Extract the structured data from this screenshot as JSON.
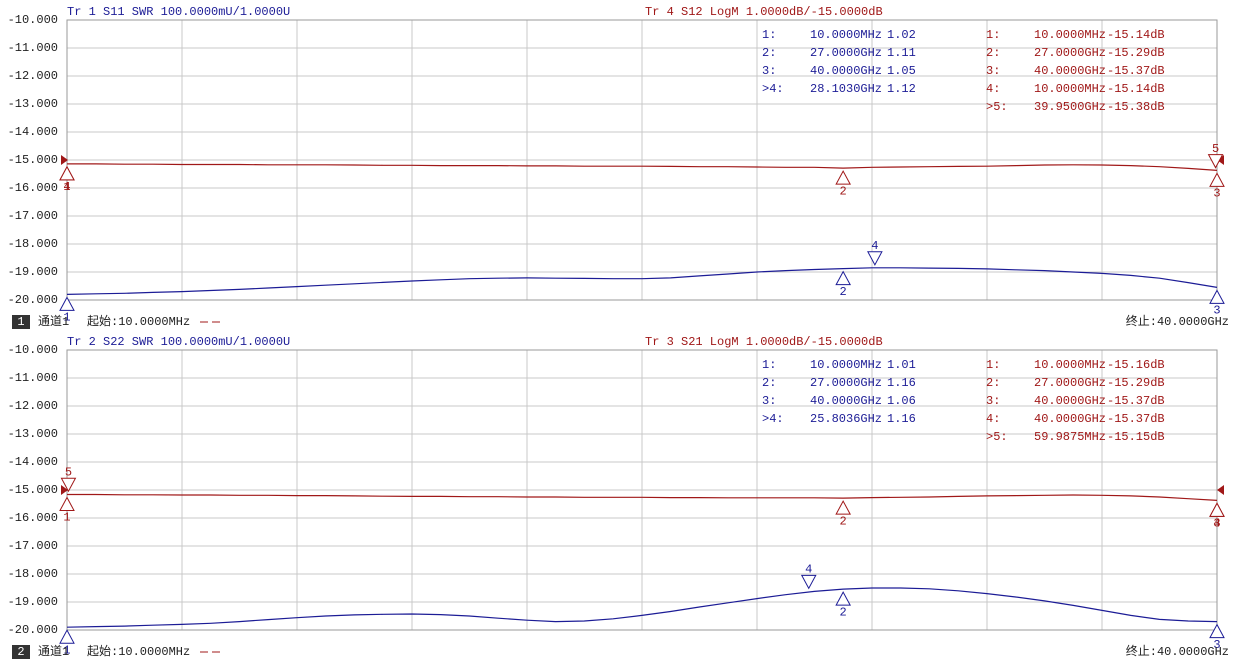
{
  "chart_data": [
    {
      "type": "line",
      "x": [
        0.01,
        1,
        2,
        3,
        4,
        5,
        6,
        7,
        8,
        9,
        10,
        11,
        12,
        13,
        14,
        15,
        16,
        17,
        18,
        19,
        20,
        21,
        22,
        23,
        24,
        25,
        26,
        27,
        28,
        29,
        30,
        31,
        32,
        33,
        34,
        35,
        36,
        37,
        38,
        39,
        40
      ],
      "xlim": [
        0.01,
        40
      ],
      "ylim": [
        -20,
        -10
      ],
      "yticks": [
        {
          "value": -10,
          "label": "-10.000"
        },
        {
          "value": -11,
          "label": "-11.000"
        },
        {
          "value": -12,
          "label": "-12.000"
        },
        {
          "value": -13,
          "label": "-13.000"
        },
        {
          "value": -14,
          "label": "-14.000"
        },
        {
          "value": -15,
          "label": "-15.000"
        },
        {
          "value": -16,
          "label": "-16.000"
        },
        {
          "value": -17,
          "label": "-17.000"
        },
        {
          "value": -18,
          "label": "-18.000"
        },
        {
          "value": -19,
          "label": "-19.000"
        },
        {
          "value": -20,
          "label": "-20.000"
        }
      ],
      "grid": true,
      "series": [
        {
          "name": "Tr 1  S11 SWR 100.0000mU/1.0000U",
          "color": "#1c1c96",
          "values": [
            -19.8,
            -19.78,
            -19.76,
            -19.73,
            -19.7,
            -19.66,
            -19.62,
            -19.57,
            -19.52,
            -19.47,
            -19.42,
            -19.37,
            -19.32,
            -19.28,
            -19.24,
            -19.22,
            -19.21,
            -19.22,
            -19.23,
            -19.24,
            -19.24,
            -19.21,
            -19.14,
            -19.07,
            -19.0,
            -18.95,
            -18.91,
            -18.88,
            -18.85,
            -18.85,
            -18.86,
            -18.87,
            -18.89,
            -18.92,
            -18.95,
            -19.0,
            -19.05,
            -19.12,
            -19.22,
            -19.38,
            -19.55
          ],
          "markers": [
            {
              "label": "1",
              "x": 0.01,
              "y": -19.8
            },
            {
              "label": "2",
              "x": 27,
              "y": -18.88
            },
            {
              "label": "3",
              "x": 40,
              "y": -19.55
            },
            {
              "label": "4",
              "x": 28.103,
              "y": -18.85,
              "active": true
            }
          ],
          "table": [
            [
              "1:",
              "10.0000MHz",
              "1.02"
            ],
            [
              "2:",
              "27.0000GHz",
              "1.11"
            ],
            [
              "3:",
              "40.0000GHz",
              "1.05"
            ],
            [
              ">4:",
              "28.1030GHz",
              "1.12"
            ]
          ]
        },
        {
          "name": "Tr 4  S12 LogM 1.0000dB/-15.0000dB",
          "color": "#a01818",
          "reference": -15,
          "values": [
            -15.14,
            -15.14,
            -15.15,
            -15.15,
            -15.16,
            -15.16,
            -15.16,
            -15.17,
            -15.17,
            -15.17,
            -15.18,
            -15.19,
            -15.19,
            -15.2,
            -15.2,
            -15.2,
            -15.21,
            -15.21,
            -15.22,
            -15.22,
            -15.22,
            -15.23,
            -15.24,
            -15.24,
            -15.25,
            -15.26,
            -15.26,
            -15.29,
            -15.26,
            -15.25,
            -15.24,
            -15.23,
            -15.22,
            -15.2,
            -15.18,
            -15.17,
            -15.18,
            -15.2,
            -15.24,
            -15.3,
            -15.37
          ],
          "markers": [
            {
              "label": "1",
              "x": 0.01,
              "y": -15.14
            },
            {
              "label": "2",
              "x": 27,
              "y": -15.29
            },
            {
              "label": "3",
              "x": 40,
              "y": -15.37
            },
            {
              "label": "4",
              "x": 0.01,
              "y": -15.14
            },
            {
              "label": "5",
              "x": 39.95,
              "y": -15.38,
              "active": true
            }
          ],
          "table": [
            [
              "1:",
              "10.0000MHz",
              "-15.14dB"
            ],
            [
              "2:",
              "27.0000GHz",
              "-15.29dB"
            ],
            [
              "3:",
              "40.0000GHz",
              "-15.37dB"
            ],
            [
              "4:",
              "10.0000MHz",
              "-15.14dB"
            ],
            [
              ">5:",
              "39.9500GHz",
              "-15.38dB"
            ]
          ]
        }
      ],
      "channel_box": "1",
      "channel": "通道1",
      "start": "起始:10.0000MHz",
      "stop": "终止:40.0000GHz"
    },
    {
      "type": "line",
      "x": [
        0.01,
        1,
        2,
        3,
        4,
        5,
        6,
        7,
        8,
        9,
        10,
        11,
        12,
        13,
        14,
        15,
        16,
        17,
        18,
        19,
        20,
        21,
        22,
        23,
        24,
        25,
        26,
        27,
        28,
        29,
        30,
        31,
        32,
        33,
        34,
        35,
        36,
        37,
        38,
        39,
        40
      ],
      "xlim": [
        0.01,
        40
      ],
      "ylim": [
        -20,
        -10
      ],
      "yticks": [
        {
          "value": -10,
          "label": "-10.000"
        },
        {
          "value": -11,
          "label": "-11.000"
        },
        {
          "value": -12,
          "label": "-12.000"
        },
        {
          "value": -13,
          "label": "-13.000"
        },
        {
          "value": -14,
          "label": "-14.000"
        },
        {
          "value": -15,
          "label": "-15.000"
        },
        {
          "value": -16,
          "label": "-16.000"
        },
        {
          "value": -17,
          "label": "-17.000"
        },
        {
          "value": -18,
          "label": "-18.000"
        },
        {
          "value": -19,
          "label": "-19.000"
        },
        {
          "value": -20,
          "label": "-20.000"
        }
      ],
      "grid": true,
      "series": [
        {
          "name": "Tr 2  S22 SWR 100.0000mU/1.0000U",
          "color": "#1c1c96",
          "values": [
            -19.9,
            -19.88,
            -19.86,
            -19.83,
            -19.8,
            -19.76,
            -19.7,
            -19.63,
            -19.56,
            -19.5,
            -19.46,
            -19.44,
            -19.43,
            -19.45,
            -19.5,
            -19.58,
            -19.65,
            -19.7,
            -19.68,
            -19.6,
            -19.48,
            -19.34,
            -19.18,
            -19.03,
            -18.88,
            -18.74,
            -18.62,
            -18.54,
            -18.5,
            -18.5,
            -18.53,
            -18.6,
            -18.7,
            -18.82,
            -18.96,
            -19.12,
            -19.3,
            -19.48,
            -19.62,
            -19.68,
            -19.7
          ],
          "markers": [
            {
              "label": "1",
              "x": 0.01,
              "y": -19.9
            },
            {
              "label": "2",
              "x": 27,
              "y": -18.54
            },
            {
              "label": "3",
              "x": 40,
              "y": -19.7
            },
            {
              "label": "4",
              "x": 25.8036,
              "y": -18.62,
              "active": true
            }
          ],
          "table": [
            [
              "1:",
              "10.0000MHz",
              "1.01"
            ],
            [
              "2:",
              "27.0000GHz",
              "1.16"
            ],
            [
              "3:",
              "40.0000GHz",
              "1.06"
            ],
            [
              ">4:",
              "25.8036GHz",
              "1.16"
            ]
          ]
        },
        {
          "name": "Tr 3  S21 LogM 1.0000dB/-15.0000dB",
          "color": "#a01818",
          "reference": -15,
          "values": [
            -15.16,
            -15.16,
            -15.17,
            -15.17,
            -15.18,
            -15.18,
            -15.19,
            -15.19,
            -15.2,
            -15.2,
            -15.21,
            -15.22,
            -15.23,
            -15.23,
            -15.24,
            -15.24,
            -15.25,
            -15.25,
            -15.26,
            -15.26,
            -15.26,
            -15.27,
            -15.27,
            -15.28,
            -15.28,
            -15.28,
            -15.28,
            -15.29,
            -15.27,
            -15.26,
            -15.25,
            -15.23,
            -15.21,
            -15.2,
            -15.19,
            -15.18,
            -15.19,
            -15.21,
            -15.25,
            -15.31,
            -15.37
          ],
          "markers": [
            {
              "label": "1",
              "x": 0.01,
              "y": -15.16
            },
            {
              "label": "2",
              "x": 27,
              "y": -15.29
            },
            {
              "label": "3",
              "x": 40,
              "y": -15.37
            },
            {
              "label": "4",
              "x": 40,
              "y": -15.37
            },
            {
              "label": "5",
              "x": 0.0599875,
              "y": -15.15,
              "active": true
            }
          ],
          "table": [
            [
              "1:",
              "10.0000MHz",
              "-15.16dB"
            ],
            [
              "2:",
              "27.0000GHz",
              "-15.29dB"
            ],
            [
              "3:",
              "40.0000GHz",
              "-15.37dB"
            ],
            [
              "4:",
              "40.0000GHz",
              "-15.37dB"
            ],
            [
              ">5:",
              "59.9875MHz",
              "-15.15dB"
            ]
          ]
        }
      ],
      "channel_box": "2",
      "channel": "通道1",
      "start": "起始:10.0000MHz",
      "stop": "终止:40.0000GHz"
    }
  ]
}
